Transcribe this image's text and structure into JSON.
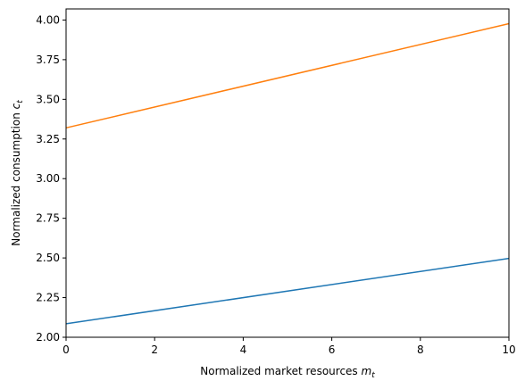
{
  "chart_data": {
    "type": "line",
    "title": "",
    "xlabel": "Normalized market resources",
    "xlabel_var": "m",
    "xlabel_sub": "t",
    "ylabel": "Normalized consumption",
    "ylabel_var": "c",
    "ylabel_sub": "t",
    "xlim": [
      0,
      10
    ],
    "ylim": [
      2.0,
      4.07
    ],
    "xticks": [
      0,
      2,
      4,
      6,
      8,
      10
    ],
    "xtick_labels": [
      "0",
      "2",
      "4",
      "6",
      "8",
      "10"
    ],
    "yticks": [
      2.0,
      2.25,
      2.5,
      2.75,
      3.0,
      3.25,
      3.5,
      3.75,
      4.0
    ],
    "ytick_labels": [
      "2.00",
      "2.25",
      "2.50",
      "2.75",
      "3.00",
      "3.25",
      "3.50",
      "3.75",
      "4.00"
    ],
    "grid": false,
    "legend": "none",
    "series": [
      {
        "color": "#1f77b4",
        "x": [
          0,
          10
        ],
        "y": [
          2.085,
          2.497
        ]
      },
      {
        "color": "#ff7f0e",
        "x": [
          0,
          10
        ],
        "y": [
          3.32,
          3.977
        ]
      }
    ]
  }
}
